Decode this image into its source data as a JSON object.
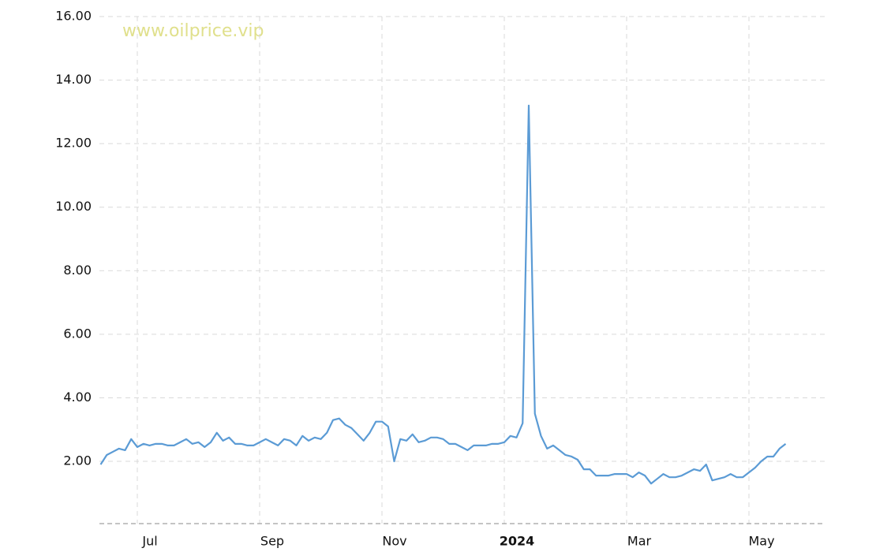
{
  "chart_data": {
    "type": "line",
    "watermark": "www.oilprice.vip",
    "categories": [
      null,
      null,
      null,
      null,
      null,
      null,
      "Jul",
      null,
      null,
      null,
      null,
      null,
      null,
      null,
      null,
      null,
      null,
      null,
      null,
      null,
      null,
      null,
      null,
      null,
      null,
      null,
      "Sep",
      null,
      null,
      null,
      null,
      null,
      null,
      null,
      null,
      null,
      null,
      null,
      null,
      null,
      null,
      null,
      null,
      null,
      null,
      null,
      "Nov",
      null,
      null,
      null,
      null,
      null,
      null,
      null,
      null,
      null,
      null,
      null,
      null,
      null,
      null,
      null,
      null,
      null,
      null,
      null,
      "2024",
      null,
      null,
      null,
      null,
      null,
      null,
      null,
      null,
      null,
      null,
      null,
      null,
      null,
      null,
      null,
      null,
      null,
      null,
      null,
      "Mar",
      null,
      null,
      null,
      null,
      null,
      null,
      null,
      null,
      null,
      null,
      null,
      null,
      null,
      null,
      null,
      null,
      null,
      null,
      null,
      "May",
      null,
      null,
      null,
      null,
      null,
      null
    ],
    "series": [
      {
        "color": "#5b9bd5",
        "values": [
          1.9,
          2.2,
          2.3,
          2.4,
          2.35,
          2.7,
          2.45,
          2.55,
          2.5,
          2.55,
          2.55,
          2.5,
          2.5,
          2.6,
          2.7,
          2.55,
          2.6,
          2.45,
          2.6,
          2.9,
          2.65,
          2.75,
          2.55,
          2.55,
          2.5,
          2.5,
          2.6,
          2.7,
          2.6,
          2.5,
          2.7,
          2.65,
          2.5,
          2.8,
          2.65,
          2.75,
          2.7,
          2.9,
          3.3,
          3.35,
          3.15,
          3.05,
          2.85,
          2.65,
          2.9,
          3.25,
          3.25,
          3.1,
          2.0,
          2.7,
          2.65,
          2.85,
          2.6,
          2.65,
          2.75,
          2.75,
          2.7,
          2.55,
          2.55,
          2.45,
          2.35,
          2.5,
          2.5,
          2.5,
          2.55,
          2.55,
          2.6,
          2.8,
          2.75,
          3.2,
          13.2,
          3.5,
          2.8,
          2.4,
          2.5,
          2.35,
          2.2,
          2.15,
          2.05,
          1.75,
          1.75,
          1.55,
          1.55,
          1.55,
          1.6,
          1.6,
          1.6,
          1.5,
          1.65,
          1.55,
          1.3,
          1.45,
          1.6,
          1.5,
          1.5,
          1.55,
          1.65,
          1.75,
          1.7,
          1.9,
          1.4,
          1.45,
          1.5,
          1.6,
          1.5,
          1.5,
          1.65,
          1.8,
          2.0,
          2.15,
          2.15,
          2.4,
          2.55
        ]
      }
    ],
    "ylim": [
      0,
      16
    ],
    "yticks": [
      {
        "value": 2,
        "label": "2.00"
      },
      {
        "value": 4,
        "label": "4.00"
      },
      {
        "value": 6,
        "label": "6.00"
      },
      {
        "value": 8,
        "label": "8.00"
      },
      {
        "value": 10,
        "label": "10.00"
      },
      {
        "value": 12,
        "label": "12.00"
      },
      {
        "value": 14,
        "label": "14.00"
      },
      {
        "value": 16,
        "label": "16.00"
      }
    ],
    "bold_categories": [
      "2024"
    ],
    "grid": true
  }
}
